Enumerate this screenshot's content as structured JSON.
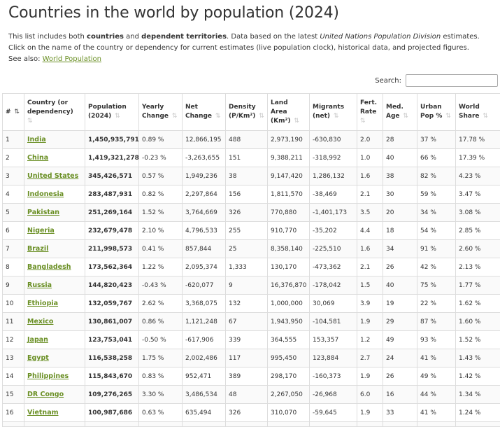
{
  "title": "Countries in the world by population (2024)",
  "intro": {
    "p1": "This list includes both ",
    "b1": "countries",
    "p2": " and ",
    "b2": "dependent territories",
    "p3": ". Data based on the latest ",
    "i1": "United Nations Population Division",
    "p4": " estimates.",
    "line2": "Click on the name of the country or dependency for current estimates (live population clock), historical data, and projected figures.",
    "see_also_prefix": "See also: ",
    "see_also_link": "World Population"
  },
  "search": {
    "label": "Search:",
    "value": "",
    "placeholder": ""
  },
  "sort_icon": "sort-arrows-icon",
  "colors": {
    "link": "#6a8f24",
    "border": "#dddddd"
  },
  "columns": [
    {
      "l1": "#",
      "l2": ""
    },
    {
      "l1": "Country (or",
      "l2": "dependency)"
    },
    {
      "l1": "Population",
      "l2": "(2024)"
    },
    {
      "l1": "Yearly",
      "l2": "Change"
    },
    {
      "l1": "Net",
      "l2": "Change"
    },
    {
      "l1": "Density",
      "l2": "(P/Km²)"
    },
    {
      "l1": "Land",
      "l2": "Area",
      "l3": "(Km²)"
    },
    {
      "l1": "Migrants",
      "l2": "(net)"
    },
    {
      "l1": "Fert.",
      "l2": "Rate"
    },
    {
      "l1": "Med.",
      "l2": "Age"
    },
    {
      "l1": "Urban",
      "l2": "Pop %"
    },
    {
      "l1": "World",
      "l2": "Share"
    }
  ],
  "rows": [
    [
      "1",
      "India",
      "1,450,935,791",
      "0.89 %",
      "12,866,195",
      "488",
      "2,973,190",
      "-630,830",
      "2.0",
      "28",
      "37 %",
      "17.78 %"
    ],
    [
      "2",
      "China",
      "1,419,321,278",
      "-0.23 %",
      "-3,263,655",
      "151",
      "9,388,211",
      "-318,992",
      "1.0",
      "40",
      "66 %",
      "17.39 %"
    ],
    [
      "3",
      "United States",
      "345,426,571",
      "0.57 %",
      "1,949,236",
      "38",
      "9,147,420",
      "1,286,132",
      "1.6",
      "38",
      "82 %",
      "4.23 %"
    ],
    [
      "4",
      "Indonesia",
      "283,487,931",
      "0.82 %",
      "2,297,864",
      "156",
      "1,811,570",
      "-38,469",
      "2.1",
      "30",
      "59 %",
      "3.47 %"
    ],
    [
      "5",
      "Pakistan",
      "251,269,164",
      "1.52 %",
      "3,764,669",
      "326",
      "770,880",
      "-1,401,173",
      "3.5",
      "20",
      "34 %",
      "3.08 %"
    ],
    [
      "6",
      "Nigeria",
      "232,679,478",
      "2.10 %",
      "4,796,533",
      "255",
      "910,770",
      "-35,202",
      "4.4",
      "18",
      "54 %",
      "2.85 %"
    ],
    [
      "7",
      "Brazil",
      "211,998,573",
      "0.41 %",
      "857,844",
      "25",
      "8,358,140",
      "-225,510",
      "1.6",
      "34",
      "91 %",
      "2.60 %"
    ],
    [
      "8",
      "Bangladesh",
      "173,562,364",
      "1.22 %",
      "2,095,374",
      "1,333",
      "130,170",
      "-473,362",
      "2.1",
      "26",
      "42 %",
      "2.13 %"
    ],
    [
      "9",
      "Russia",
      "144,820,423",
      "-0.43 %",
      "-620,077",
      "9",
      "16,376,870",
      "-178,042",
      "1.5",
      "40",
      "75 %",
      "1.77 %"
    ],
    [
      "10",
      "Ethiopia",
      "132,059,767",
      "2.62 %",
      "3,368,075",
      "132",
      "1,000,000",
      "30,069",
      "3.9",
      "19",
      "22 %",
      "1.62 %"
    ],
    [
      "11",
      "Mexico",
      "130,861,007",
      "0.86 %",
      "1,121,248",
      "67",
      "1,943,950",
      "-104,581",
      "1.9",
      "29",
      "87 %",
      "1.60 %"
    ],
    [
      "12",
      "Japan",
      "123,753,041",
      "-0.50 %",
      "-617,906",
      "339",
      "364,555",
      "153,357",
      "1.2",
      "49",
      "93 %",
      "1.52 %"
    ],
    [
      "13",
      "Egypt",
      "116,538,258",
      "1.75 %",
      "2,002,486",
      "117",
      "995,450",
      "123,884",
      "2.7",
      "24",
      "41 %",
      "1.43 %"
    ],
    [
      "14",
      "Philippines",
      "115,843,670",
      "0.83 %",
      "952,471",
      "389",
      "298,170",
      "-160,373",
      "1.9",
      "26",
      "49 %",
      "1.42 %"
    ],
    [
      "15",
      "DR Congo",
      "109,276,265",
      "3.30 %",
      "3,486,534",
      "48",
      "2,267,050",
      "-26,968",
      "6.0",
      "16",
      "44 %",
      "1.34 %"
    ],
    [
      "16",
      "Vietnam",
      "100,987,686",
      "0.63 %",
      "635,494",
      "326",
      "310,070",
      "-59,645",
      "1.9",
      "33",
      "41 %",
      "1.24 %"
    ]
  ]
}
